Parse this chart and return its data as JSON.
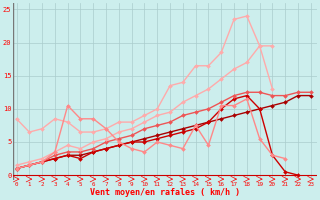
{
  "title": "",
  "xlabel": "Vent moyen/en rafales ( km/h )",
  "bg_color": "#cceeed",
  "grid_color": "#aacccc",
  "series": [
    {
      "x": [
        0,
        1,
        2,
        3,
        4,
        5,
        6,
        7,
        8,
        9,
        10,
        11,
        12,
        13,
        14,
        15,
        16,
        17,
        18,
        19,
        20,
        21,
        22,
        23
      ],
      "y": [
        1.0,
        1.5,
        2.0,
        2.5,
        3.0,
        3.0,
        3.5,
        4.0,
        4.5,
        5.0,
        5.5,
        6.0,
        6.5,
        7.0,
        7.5,
        8.0,
        8.5,
        9.0,
        9.5,
        10.0,
        10.5,
        11.0,
        12.0,
        12.0
      ],
      "color": "#aa0000",
      "lw": 1.0
    },
    {
      "x": [
        0,
        1,
        2,
        3,
        4,
        5,
        6,
        7,
        8,
        9,
        10,
        11,
        12,
        13,
        14,
        15,
        16,
        17,
        18,
        19,
        20,
        21,
        22
      ],
      "y": [
        1.0,
        1.5,
        2.0,
        2.5,
        3.0,
        2.5,
        3.5,
        4.0,
        4.5,
        5.0,
        5.0,
        5.5,
        6.0,
        6.5,
        7.0,
        8.0,
        10.0,
        11.5,
        12.0,
        10.0,
        3.0,
        0.5,
        0.0
      ],
      "color": "#cc0000",
      "lw": 1.0
    },
    {
      "x": [
        0,
        1,
        2,
        3,
        4,
        5,
        6,
        7,
        8,
        9,
        10,
        11,
        12,
        13,
        14,
        15,
        16,
        17,
        18,
        19,
        20,
        21,
        22,
        23
      ],
      "y": [
        1.0,
        1.5,
        2.0,
        3.0,
        3.5,
        3.5,
        4.0,
        5.0,
        5.5,
        6.0,
        7.0,
        7.5,
        8.0,
        9.0,
        9.5,
        10.0,
        11.0,
        12.0,
        12.5,
        12.5,
        12.0,
        12.0,
        12.5,
        12.5
      ],
      "color": "#ee5555",
      "lw": 1.0
    },
    {
      "x": [
        0,
        1,
        2,
        3,
        4,
        5,
        6,
        7,
        8,
        9,
        10,
        11,
        12,
        13,
        14,
        15,
        16,
        17,
        18,
        19,
        20
      ],
      "y": [
        8.5,
        6.5,
        7.0,
        8.5,
        8.0,
        6.5,
        6.5,
        7.0,
        8.0,
        8.0,
        9.0,
        10.0,
        13.5,
        14.0,
        16.5,
        16.5,
        18.5,
        23.5,
        24.0,
        19.5,
        13.0
      ],
      "color": "#ffaaaa",
      "lw": 1.0
    },
    {
      "x": [
        0,
        1,
        2,
        3,
        4,
        5,
        6,
        7,
        8,
        9,
        10,
        11,
        12,
        13,
        14,
        15,
        16,
        17,
        18,
        19,
        20
      ],
      "y": [
        1.5,
        2.0,
        2.5,
        3.5,
        4.5,
        4.0,
        5.0,
        5.5,
        6.5,
        7.0,
        8.0,
        9.0,
        9.5,
        11.0,
        12.0,
        13.0,
        14.5,
        16.0,
        17.0,
        19.5,
        19.5
      ],
      "color": "#ffaaaa",
      "lw": 1.0
    },
    {
      "x": [
        0,
        1,
        2,
        3,
        4,
        5,
        6,
        7,
        8,
        9,
        10,
        11,
        12,
        13,
        14,
        15,
        16,
        17,
        18,
        19,
        20,
        21
      ],
      "y": [
        1.0,
        1.5,
        2.0,
        3.5,
        10.5,
        8.5,
        8.5,
        7.0,
        5.0,
        4.0,
        3.5,
        5.0,
        4.5,
        4.0,
        7.5,
        4.5,
        10.5,
        10.5,
        11.5,
        5.5,
        3.0,
        2.5
      ],
      "color": "#ff8888",
      "lw": 1.0
    }
  ],
  "marker": "D",
  "marker_size": 2.0,
  "yticks": [
    0,
    5,
    10,
    15,
    20,
    25
  ],
  "xticks": [
    0,
    1,
    2,
    3,
    4,
    5,
    6,
    7,
    8,
    9,
    10,
    11,
    12,
    13,
    14,
    15,
    16,
    17,
    18,
    19,
    20,
    21,
    22,
    23
  ]
}
